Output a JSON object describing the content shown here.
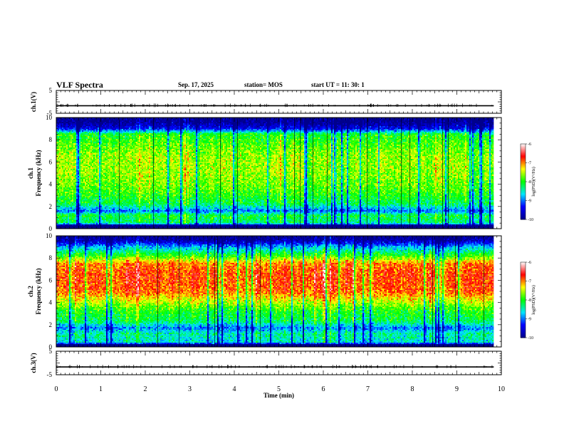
{
  "header": {
    "title": "VLF Spectra",
    "date": "Sep. 17, 2025",
    "station": "station= MOS",
    "start": "start  UT =   11: 30: 1"
  },
  "chart_data": [
    {
      "type": "line",
      "panel": "ch1-waveform",
      "ylabel": "ch.1(V)",
      "ylim": [
        -5,
        5
      ],
      "yticks": [
        "5",
        "-5"
      ],
      "x": [
        0,
        9.83
      ],
      "values": [
        -1.7,
        -1.7
      ],
      "color": "#000000"
    },
    {
      "type": "heatmap",
      "panel": "ch1-spectrogram",
      "ylabel_line1": "ch.1",
      "ylabel_line2": "Frequency  (kHz)",
      "ylim": [
        0,
        10
      ],
      "yticks": [
        "0",
        "2",
        "4",
        "6",
        "8",
        "10"
      ],
      "xlim": [
        0,
        10
      ],
      "data_end_min": 9.83,
      "profile_log_psd": [
        {
          "f": 0.0,
          "v": -10
        },
        {
          "f": 0.3,
          "v": -10
        },
        {
          "f": 0.5,
          "v": -8.3
        },
        {
          "f": 1.2,
          "v": -8.1
        },
        {
          "f": 1.6,
          "v": -9.0
        },
        {
          "f": 2.2,
          "v": -8.2
        },
        {
          "f": 3.5,
          "v": -7.8
        },
        {
          "f": 5.0,
          "v": -7.6
        },
        {
          "f": 6.5,
          "v": -7.6
        },
        {
          "f": 8.5,
          "v": -8.0
        },
        {
          "f": 9.0,
          "v": -9.4
        },
        {
          "f": 9.6,
          "v": -9.95
        },
        {
          "f": 10.0,
          "v": -10
        }
      ],
      "colorbar": {
        "label": "log(PSD)(V²/Hz)",
        "range": [
          -10,
          -6
        ],
        "ticks": [
          "-6",
          "-7",
          "-8",
          "-9",
          "-10"
        ],
        "colormap": [
          "#00008c",
          "#0000ff",
          "#00e6ff",
          "#00ff00",
          "#ffff00",
          "#ff0000",
          "#ffffff"
        ]
      }
    },
    {
      "type": "heatmap",
      "panel": "ch2-spectrogram",
      "ylabel_line1": "ch.2",
      "ylabel_line2": "Frequency  (kHz)",
      "ylim": [
        0,
        10
      ],
      "yticks": [
        "0",
        "2",
        "4",
        "6",
        "8",
        "10"
      ],
      "xlim": [
        0,
        10
      ],
      "data_end_min": 9.83,
      "profile_log_psd": [
        {
          "f": 0.0,
          "v": -10
        },
        {
          "f": 0.2,
          "v": -10
        },
        {
          "f": 0.4,
          "v": -8.6
        },
        {
          "f": 1.2,
          "v": -8.4
        },
        {
          "f": 1.7,
          "v": -9.0
        },
        {
          "f": 2.3,
          "v": -8.2
        },
        {
          "f": 3.2,
          "v": -8.0
        },
        {
          "f": 4.2,
          "v": -7.4
        },
        {
          "f": 5.0,
          "v": -6.9
        },
        {
          "f": 6.5,
          "v": -6.8
        },
        {
          "f": 7.5,
          "v": -7.0
        },
        {
          "f": 8.2,
          "v": -7.9
        },
        {
          "f": 9.0,
          "v": -8.8
        },
        {
          "f": 9.6,
          "v": -9.8
        },
        {
          "f": 10.0,
          "v": -10
        }
      ],
      "colorbar": {
        "label": "log(PSD)(V²/Hz)",
        "range": [
          -10,
          -6
        ],
        "ticks": [
          "-6",
          "-7",
          "-8",
          "-9",
          "-10"
        ],
        "colormap": [
          "#00008c",
          "#0000ff",
          "#00e6ff",
          "#00ff00",
          "#ffff00",
          "#ff0000",
          "#ffffff"
        ]
      }
    },
    {
      "type": "line",
      "panel": "ch3-waveform",
      "ylabel": "ch.3(V)",
      "ylim": [
        -5,
        5
      ],
      "yticks": [
        "5",
        "-5"
      ],
      "x": [
        0,
        9.83
      ],
      "values": [
        -1.7,
        -1.7
      ],
      "color": "#000000",
      "xlabel": "Time  (min)",
      "xlim": [
        0,
        10
      ],
      "xticks": [
        "0",
        "1",
        "2",
        "3",
        "4",
        "5",
        "6",
        "7",
        "8",
        "9",
        "10"
      ]
    }
  ]
}
